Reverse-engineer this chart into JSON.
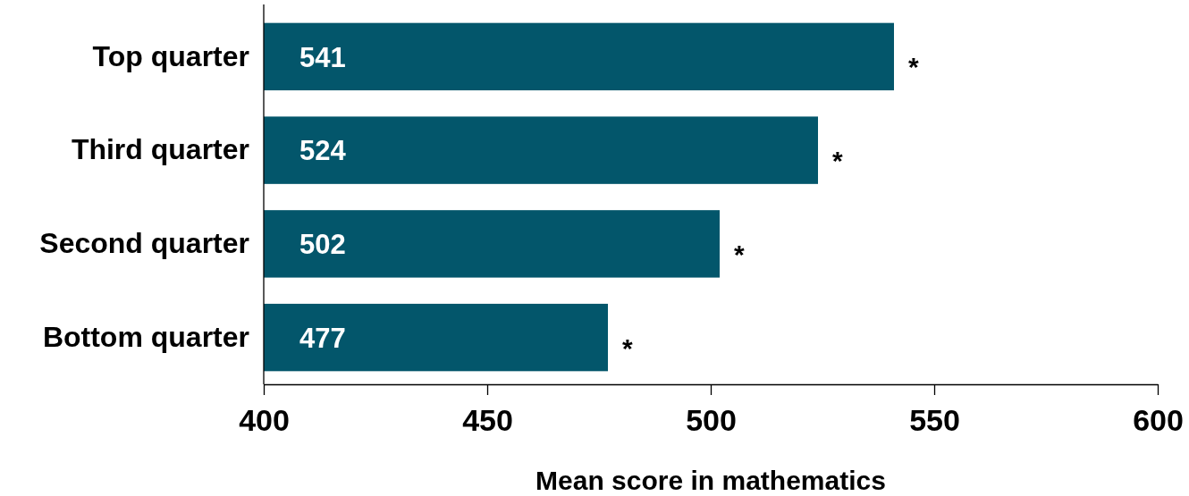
{
  "chart_data": {
    "type": "bar",
    "orientation": "horizontal",
    "categories": [
      "Top quarter",
      "Third quarter",
      "Second quarter",
      "Bottom quarter"
    ],
    "values": [
      541,
      524,
      502,
      477
    ],
    "color": "#03566b",
    "data_labels": true,
    "xlim": [
      400,
      600
    ],
    "xticks": [
      400,
      450,
      500,
      550,
      600
    ],
    "xlabel": "Mean score in mathematics",
    "grid": false,
    "annotations": [
      {
        "text": "*",
        "x": 541,
        "y": "Top quarter"
      },
      {
        "text": "*",
        "x": 524,
        "y": "Third quarter"
      },
      {
        "text": "*",
        "x": 502,
        "y": "Second quarter"
      },
      {
        "text": "*",
        "x": 477,
        "y": "Bottom quarter"
      }
    ]
  }
}
